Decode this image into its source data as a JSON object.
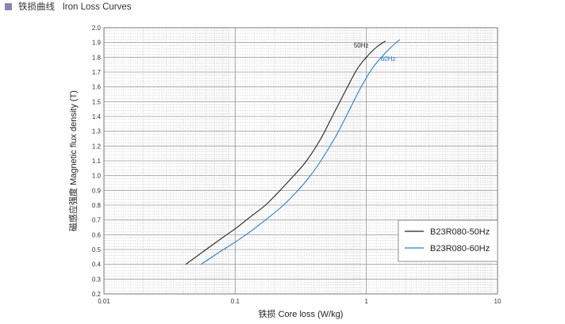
{
  "header": {
    "title": "铁损曲线   Iron Loss Curves"
  },
  "colors": {
    "series_50hz": "#222222",
    "series_60hz": "#2a7fc1",
    "grid_minor": "#b9b9b9",
    "grid_major": "#9a9a9a",
    "marker": "#8a86ad"
  },
  "chart_data": {
    "type": "line",
    "title": "铁损曲线   Iron Loss Curves",
    "xlabel": "铁损   Core loss (W/kg)",
    "ylabel": "磁感应强度   Magnetic flux density (T)",
    "xscale": "log",
    "xlim": [
      0.01,
      10
    ],
    "ylim": [
      0.2,
      2.0
    ],
    "grid": true,
    "legend_position": "bottom-right",
    "x_ticks": [
      "0.01",
      "0.1",
      "1",
      "10"
    ],
    "y_ticks": [
      "0.2",
      "0.3",
      "0.4",
      "0.5",
      "0.6",
      "0.7",
      "0.8",
      "0.9",
      "1.0",
      "1.1",
      "1.2",
      "1.3",
      "1.4",
      "1.5",
      "1.6",
      "1.7",
      "1.8",
      "1.9",
      "2.0"
    ],
    "series": [
      {
        "name": "B23R080-50Hz",
        "curve_label": "50Hz",
        "x": [
          0.042,
          0.06,
          0.08,
          0.1,
          0.13,
          0.17,
          0.22,
          0.28,
          0.35,
          0.45,
          0.55,
          0.7,
          0.85,
          1.0,
          1.2,
          1.4
        ],
        "y": [
          0.4,
          0.5,
          0.58,
          0.64,
          0.72,
          0.8,
          0.9,
          1.0,
          1.1,
          1.25,
          1.4,
          1.58,
          1.72,
          1.8,
          1.87,
          1.91
        ]
      },
      {
        "name": "B23R080-60Hz",
        "curve_label": "60Hz",
        "x": [
          0.055,
          0.075,
          0.1,
          0.13,
          0.17,
          0.22,
          0.28,
          0.36,
          0.45,
          0.58,
          0.72,
          0.9,
          1.1,
          1.3,
          1.55,
          1.8
        ],
        "y": [
          0.4,
          0.48,
          0.55,
          0.62,
          0.7,
          0.78,
          0.87,
          0.98,
          1.1,
          1.26,
          1.42,
          1.59,
          1.72,
          1.8,
          1.87,
          1.92
        ]
      }
    ]
  }
}
